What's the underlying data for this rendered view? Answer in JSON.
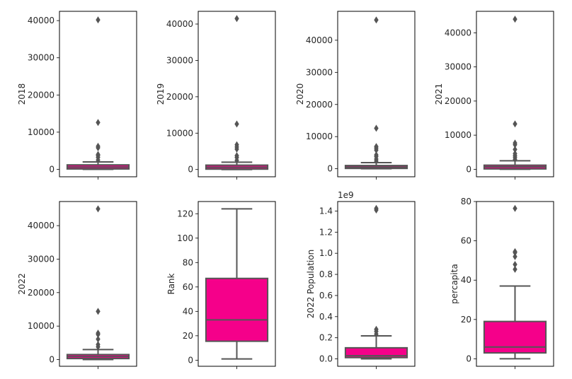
{
  "figure": {
    "title": "",
    "box_color": "#f5008a",
    "line_color": "#555555"
  },
  "chart_data": [
    {
      "type": "box",
      "ylabel": "2018",
      "ylim": [
        -2000,
        42500
      ],
      "yticks": [
        0,
        10000,
        20000,
        30000,
        40000
      ],
      "tick_labels": [
        "0",
        "10000",
        "20000",
        "30000",
        "40000"
      ],
      "offset_label": "",
      "box": {
        "whisker_low": 0,
        "q1": 100,
        "median": 600,
        "q3": 1200,
        "whisker_high": 2000
      },
      "outliers": [
        2500,
        3200,
        3700,
        4000,
        5800,
        6200,
        12600,
        40200
      ]
    },
    {
      "type": "box",
      "ylabel": "2019",
      "ylim": [
        -2000,
        43500
      ],
      "yticks": [
        0,
        10000,
        20000,
        30000,
        40000
      ],
      "tick_labels": [
        "0",
        "10000",
        "20000",
        "30000",
        "40000"
      ],
      "offset_label": "",
      "box": {
        "whisker_low": 0,
        "q1": 100,
        "median": 600,
        "q3": 1200,
        "whisker_high": 2000
      },
      "outliers": [
        2500,
        3300,
        3800,
        5600,
        6200,
        6800,
        12500,
        41500
      ]
    },
    {
      "type": "box",
      "ylabel": "2020",
      "ylim": [
        -2500,
        49000
      ],
      "yticks": [
        0,
        10000,
        20000,
        30000,
        40000
      ],
      "tick_labels": [
        "0",
        "10000",
        "20000",
        "30000",
        "40000"
      ],
      "offset_label": "",
      "box": {
        "whisker_low": 0,
        "q1": 100,
        "median": 500,
        "q3": 1000,
        "whisker_high": 1900
      },
      "outliers": [
        2400,
        3000,
        3800,
        4300,
        5800,
        6400,
        6900,
        12600,
        46300
      ]
    },
    {
      "type": "box",
      "ylabel": "2021",
      "ylim": [
        -2200,
        46300
      ],
      "yticks": [
        0,
        10000,
        20000,
        30000,
        40000
      ],
      "tick_labels": [
        "0",
        "10000",
        "20000",
        "30000",
        "40000"
      ],
      "offset_label": "",
      "box": {
        "whisker_low": 0,
        "q1": 100,
        "median": 700,
        "q3": 1200,
        "whisker_high": 2500
      },
      "outliers": [
        2900,
        3500,
        4000,
        4600,
        5800,
        7200,
        7700,
        13300,
        44000
      ]
    },
    {
      "type": "box",
      "ylabel": "2022",
      "ylim": [
        -2000,
        47200
      ],
      "yticks": [
        0,
        10000,
        20000,
        30000,
        40000
      ],
      "tick_labels": [
        "0",
        "10000",
        "20000",
        "30000",
        "40000"
      ],
      "offset_label": "",
      "box": {
        "whisker_low": 0,
        "q1": 300,
        "median": 900,
        "q3": 1500,
        "whisker_high": 3000
      },
      "outliers": [
        3800,
        4500,
        6100,
        7500,
        7900,
        14400,
        45000
      ]
    },
    {
      "type": "box",
      "ylabel": "Rank",
      "ylim": [
        -5,
        130
      ],
      "yticks": [
        0,
        20,
        40,
        60,
        80,
        100,
        120
      ],
      "tick_labels": [
        "0",
        "20",
        "40",
        "60",
        "80",
        "100",
        "120"
      ],
      "offset_label": "",
      "box": {
        "whisker_low": 1,
        "q1": 15.5,
        "median": 33,
        "q3": 67,
        "whisker_high": 124
      },
      "outliers": []
    },
    {
      "type": "box",
      "ylabel": "2022 Population",
      "ylim": [
        -0.07,
        1.49
      ],
      "yticks": [
        0.0,
        0.2,
        0.4,
        0.6,
        0.8,
        1.0,
        1.2,
        1.4
      ],
      "tick_labels": [
        "0.0",
        "0.2",
        "0.4",
        "0.6",
        "0.8",
        "1.0",
        "1.2",
        "1.4"
      ],
      "offset_label": "1e9",
      "box": {
        "whisker_low": 0.0,
        "q1": 0.012,
        "median": 0.03,
        "q3": 0.105,
        "whisker_high": 0.218
      },
      "outliers": [
        0.235,
        0.26,
        0.28,
        1.41,
        1.425
      ]
    },
    {
      "type": "box",
      "ylabel": "percapita",
      "ylim": [
        -3.8,
        80
      ],
      "yticks": [
        0,
        20,
        40,
        60,
        80
      ],
      "tick_labels": [
        "0",
        "20",
        "40",
        "60",
        "80"
      ],
      "offset_label": "",
      "box": {
        "whisker_low": 0,
        "q1": 3,
        "median": 6,
        "q3": 19,
        "whisker_high": 37
      },
      "outliers": [
        45.5,
        48,
        52,
        54,
        54.5,
        76.5
      ]
    }
  ]
}
